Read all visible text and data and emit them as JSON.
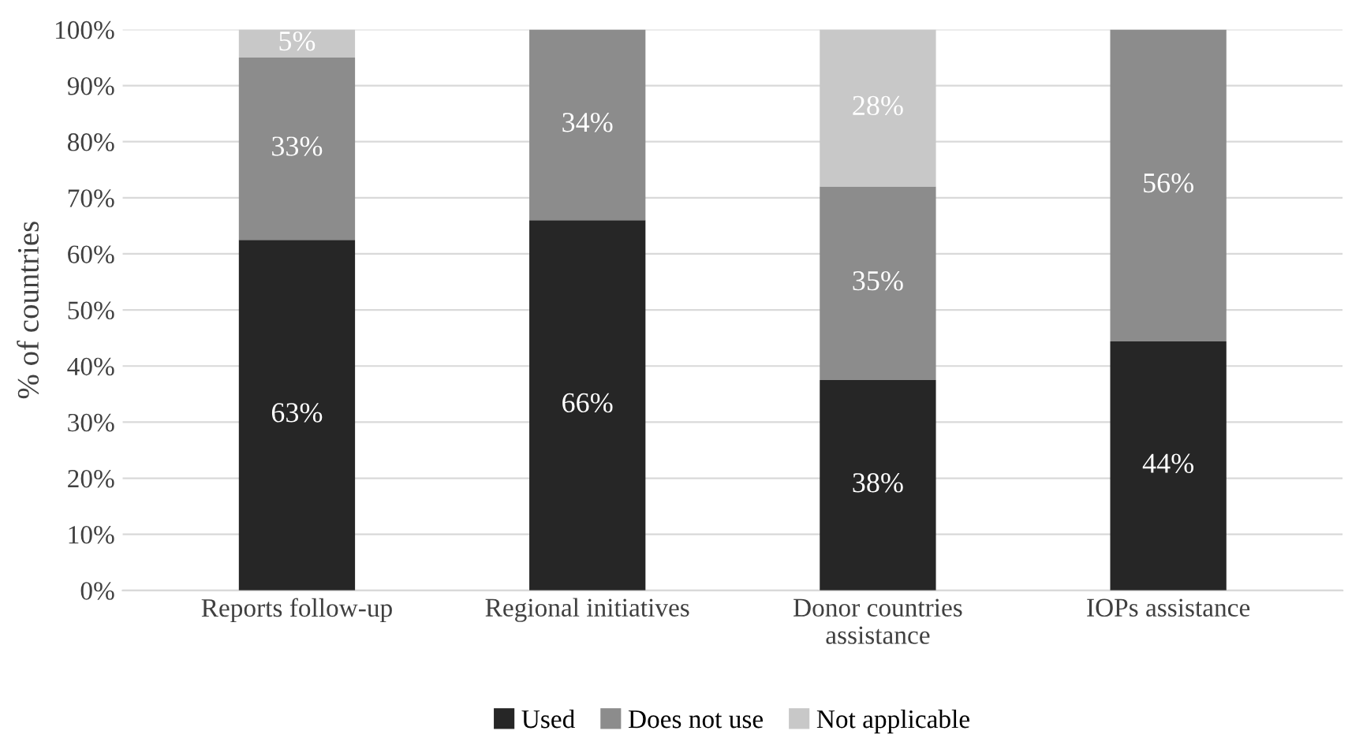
{
  "chart_data": {
    "type": "bar",
    "stacked": true,
    "ylabel": "% of countries",
    "categories": [
      "Reports follow-up",
      "Regional initiatives",
      "Donor countries\nassistance",
      "IOPs assistance"
    ],
    "series": [
      {
        "name": "Used",
        "color": "#262626",
        "values": [
          62.5,
          66,
          37.5,
          44.4
        ],
        "value_labels": [
          "63%",
          "66%",
          "38%",
          "44%"
        ]
      },
      {
        "name": "Does not use",
        "color": "#8c8c8c",
        "values": [
          32.5,
          34,
          34.5,
          55.6
        ],
        "value_labels": [
          "33%",
          "34%",
          "35%",
          "56%"
        ]
      },
      {
        "name": "Not applicable",
        "color": "#c8c8c8",
        "values": [
          5,
          null,
          28,
          null
        ],
        "value_labels": [
          "5%",
          null,
          "28%",
          null
        ]
      }
    ],
    "ylim": [
      0,
      100
    ],
    "yticks": [
      {
        "value": 0,
        "label": "0%"
      },
      {
        "value": 10,
        "label": "10%"
      },
      {
        "value": 20,
        "label": "20%"
      },
      {
        "value": 30,
        "label": "30%"
      },
      {
        "value": 40,
        "label": "40%"
      },
      {
        "value": 50,
        "label": "50%"
      },
      {
        "value": 60,
        "label": "60%"
      },
      {
        "value": 70,
        "label": "70%"
      },
      {
        "value": 80,
        "label": "80%"
      },
      {
        "value": 90,
        "label": "90%"
      },
      {
        "value": 100,
        "label": "100%"
      }
    ],
    "grid": "y",
    "legend": "bottom"
  }
}
